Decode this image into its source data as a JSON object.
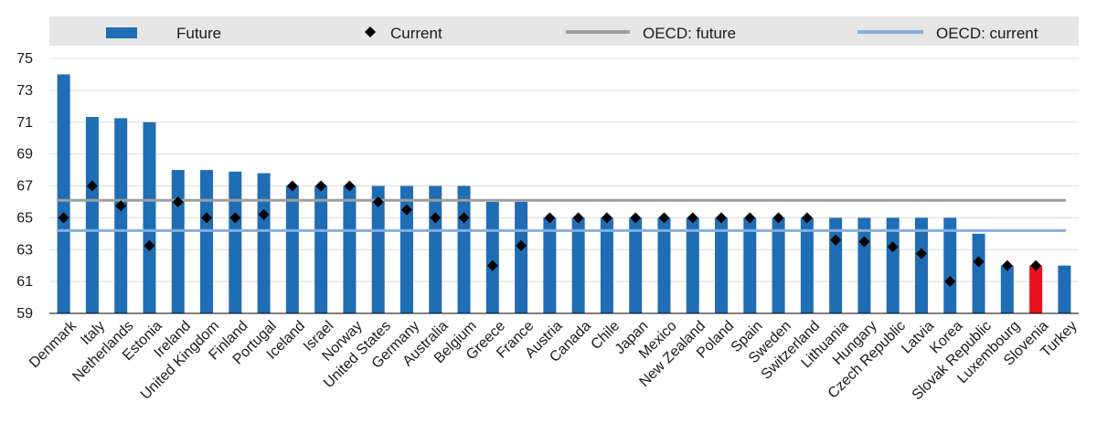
{
  "chart_data": {
    "type": "bar",
    "title": "",
    "xlabel": "",
    "ylabel": "",
    "ylim": [
      59,
      75
    ],
    "yticks": [
      59,
      61,
      63,
      65,
      67,
      69,
      71,
      73,
      75
    ],
    "grid": "horizontal",
    "legend_position": "top",
    "categories": [
      "Denmark",
      "Italy",
      "Netherlands",
      "Estonia",
      "Ireland",
      "United Kingdom",
      "Finland",
      "Portugal",
      "Iceland",
      "Israel",
      "Norway",
      "United States",
      "Germany",
      "Australia",
      "Belgium",
      "Greece",
      "France",
      "Austria",
      "Canada",
      "Chile",
      "Japan",
      "Mexico",
      "New Zealand",
      "Poland",
      "Spain",
      "Sweden",
      "Switzerland",
      "Lithuania",
      "Hungary",
      "Czech Republic",
      "Latvia",
      "Korea",
      "Slovak Republic",
      "Luxembourg",
      "Slovenia",
      "Turkey"
    ],
    "series": [
      {
        "name": "Future",
        "kind": "bar",
        "color": "#1f6db5",
        "highlight": {
          "Slovenia": "#e8121b"
        },
        "values": [
          74,
          71.33,
          71.25,
          71,
          68,
          68,
          67.9,
          67.8,
          67,
          67,
          67,
          67,
          67,
          67,
          67,
          66,
          66,
          65,
          65,
          65,
          65,
          65,
          65,
          65,
          65,
          65,
          65,
          65,
          65,
          65,
          65,
          65,
          64,
          62,
          62,
          62
        ]
      },
      {
        "name": "Current",
        "kind": "marker",
        "color": "#000000",
        "values": [
          65,
          67,
          65.75,
          63.25,
          66,
          65,
          65,
          65.2,
          67,
          67,
          67,
          66,
          65.5,
          65,
          65,
          62,
          63.25,
          65,
          65,
          65,
          65,
          65,
          65,
          65,
          65,
          65,
          65,
          63.6,
          63.5,
          63.17,
          62.75,
          61,
          62.25,
          62,
          62,
          null
        ]
      },
      {
        "name": "OECD: future",
        "kind": "line",
        "color": "#9e9e9e",
        "value": 66.1
      },
      {
        "name": "OECD: current",
        "kind": "line",
        "color": "#86aee0",
        "value": 64.2
      }
    ]
  }
}
